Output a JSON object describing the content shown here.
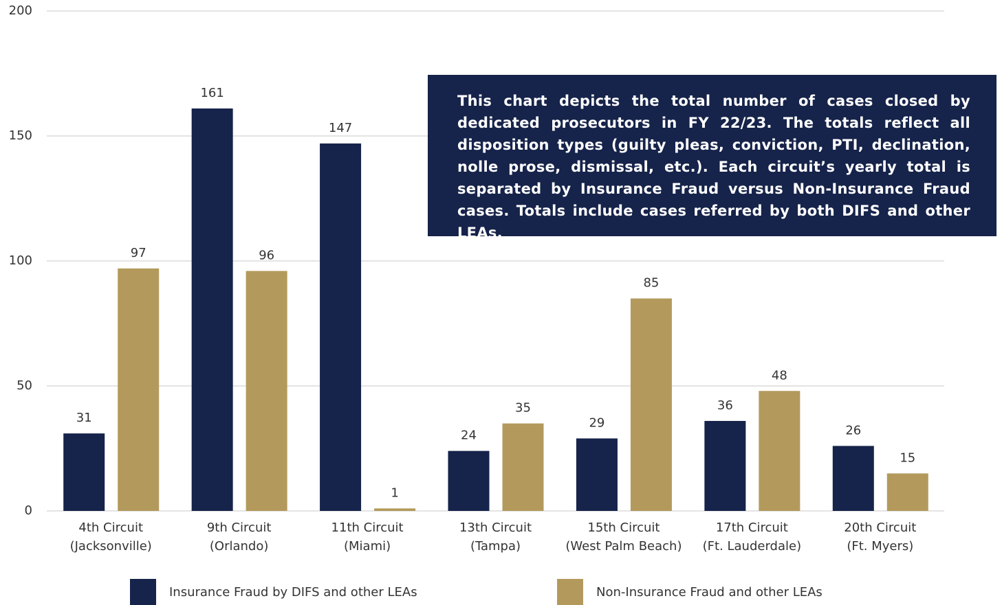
{
  "chart_data": {
    "type": "bar",
    "categories": [
      [
        "4th Circuit",
        "(Jacksonville)"
      ],
      [
        "9th Circuit",
        "(Orlando)"
      ],
      [
        "11th Circuit",
        "(Miami)"
      ],
      [
        "13th Circuit",
        "(Tampa)"
      ],
      [
        "15th Circuit",
        "(West Palm Beach)"
      ],
      [
        "17th Circuit",
        "(Ft. Lauderdale)"
      ],
      [
        "20th Circuit",
        "(Ft. Myers)"
      ]
    ],
    "series": [
      {
        "name": "Insurance Fraud by DIFS and other LEAs",
        "color": "#16234a",
        "values": [
          31,
          161,
          147,
          24,
          29,
          36,
          26
        ]
      },
      {
        "name": "Non-Insurance Fraud and other LEAs",
        "color": "#b39a5c",
        "values": [
          97,
          96,
          1,
          35,
          85,
          48,
          15
        ]
      }
    ],
    "ylim": [
      0,
      200
    ],
    "yticks": [
      0,
      50,
      100,
      150,
      200
    ],
    "grid": true,
    "annotation": "This chart depicts the total number of cases closed by dedicated prosecutors in FY 22/23. The totals reflect all disposition types (guilty pleas, conviction, PTI, declination, nolle prose, dismissal, etc.). Each circuit’s yearly total is separated by Insurance Fraud versus Non-Insurance Fraud cases. Totals include cases referred by both DIFS and other LEAs."
  }
}
